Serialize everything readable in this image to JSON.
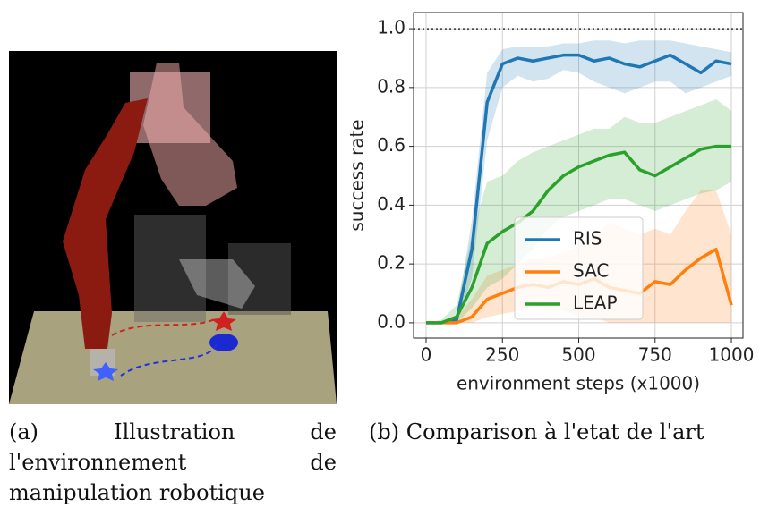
{
  "figure": {
    "caption_a": "(a) Illustration de l'environnement de manipulation robotique",
    "caption_b": "(b) Comparison à l'etat de l'art"
  },
  "chart_data": {
    "type": "line",
    "xlabel": "environment steps (x1000)",
    "ylabel": "success rate",
    "x": [
      0,
      50,
      100,
      150,
      200,
      250,
      300,
      350,
      400,
      450,
      500,
      550,
      600,
      650,
      700,
      750,
      800,
      850,
      900,
      950,
      1000
    ],
    "series": [
      {
        "name": "RIS",
        "color": "#1f77b4",
        "values": [
          0,
          0,
          0.01,
          0.25,
          0.75,
          0.88,
          0.9,
          0.89,
          0.9,
          0.91,
          0.91,
          0.89,
          0.9,
          0.88,
          0.87,
          0.89,
          0.91,
          0.88,
          0.85,
          0.89,
          0.88
        ],
        "lower": [
          0,
          0,
          0,
          0.15,
          0.62,
          0.8,
          0.84,
          0.82,
          0.83,
          0.86,
          0.85,
          0.82,
          0.8,
          0.78,
          0.8,
          0.82,
          0.82,
          0.78,
          0.8,
          0.82,
          0.84
        ],
        "upper": [
          0,
          0,
          0.02,
          0.35,
          0.85,
          0.93,
          0.94,
          0.94,
          0.94,
          0.95,
          0.95,
          0.96,
          0.96,
          0.95,
          0.96,
          0.96,
          0.96,
          0.95,
          0.94,
          0.93,
          0.92
        ]
      },
      {
        "name": "SAC",
        "color": "#ff7f0e",
        "values": [
          0,
          0,
          0,
          0.02,
          0.08,
          0.1,
          0.12,
          0.13,
          0.12,
          0.14,
          0.13,
          0.15,
          0.12,
          0.11,
          0.1,
          0.14,
          0.13,
          0.18,
          0.22,
          0.25,
          0.06
        ],
        "lower": [
          0,
          0,
          0,
          0,
          0.02,
          0.03,
          0.04,
          0.05,
          0.04,
          0.04,
          0.02,
          0.02,
          0,
          0,
          0,
          0,
          0,
          0,
          0,
          0,
          0
        ],
        "upper": [
          0,
          0,
          0.02,
          0.08,
          0.16,
          0.18,
          0.2,
          0.22,
          0.22,
          0.24,
          0.26,
          0.3,
          0.34,
          0.32,
          0.3,
          0.32,
          0.3,
          0.38,
          0.45,
          0.45,
          0.3
        ]
      },
      {
        "name": "LEAP",
        "color": "#2ca02c",
        "values": [
          0,
          0,
          0.02,
          0.12,
          0.27,
          0.31,
          0.34,
          0.38,
          0.45,
          0.5,
          0.53,
          0.55,
          0.57,
          0.58,
          0.52,
          0.5,
          0.53,
          0.56,
          0.59,
          0.6,
          0.6
        ],
        "lower": [
          0,
          0,
          0,
          0.05,
          0.12,
          0.15,
          0.2,
          0.25,
          0.32,
          0.36,
          0.38,
          0.4,
          0.42,
          0.42,
          0.4,
          0.38,
          0.4,
          0.42,
          0.44,
          0.45,
          0.48
        ],
        "upper": [
          0,
          0.01,
          0.06,
          0.3,
          0.48,
          0.5,
          0.55,
          0.58,
          0.6,
          0.62,
          0.64,
          0.66,
          0.66,
          0.7,
          0.68,
          0.68,
          0.7,
          0.72,
          0.74,
          0.76,
          0.72
        ]
      }
    ],
    "xlim": [
      -41,
      1038
    ],
    "ylim": [
      -0.052,
      1.055
    ],
    "xticks": [
      0,
      250,
      500,
      750,
      1000
    ],
    "yticks": [
      {
        "value": 0,
        "label": "0.0"
      },
      0.2,
      0.4,
      0.6,
      0.8,
      {
        "value": 1,
        "label": "1.0"
      }
    ],
    "hline": 1,
    "grid": true
  }
}
